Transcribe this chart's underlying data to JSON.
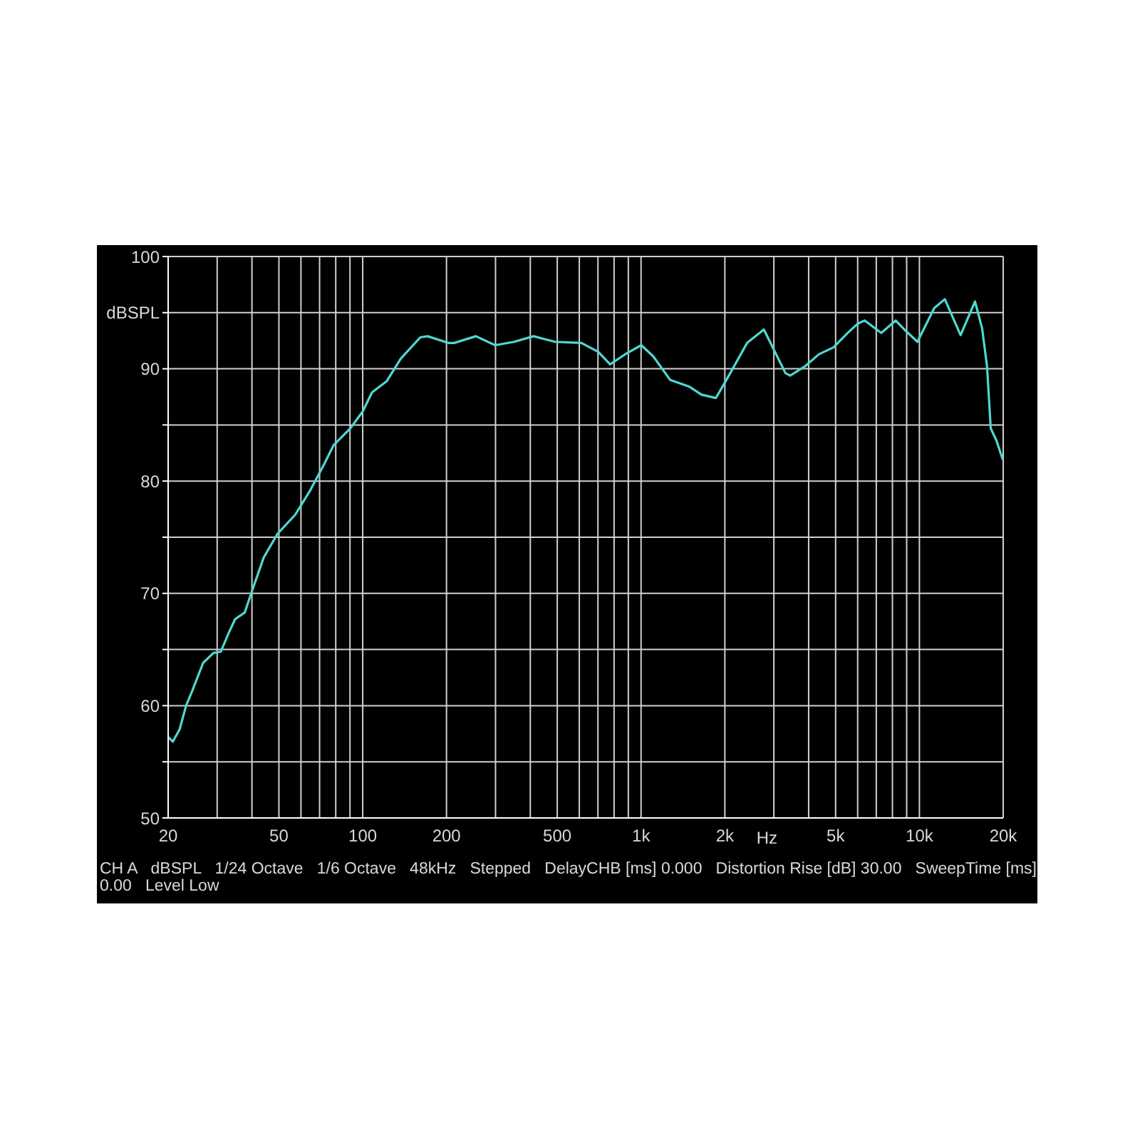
{
  "chart_data": {
    "type": "line",
    "xlabel": "Hz",
    "ylabel": "dBSPL",
    "log": "x",
    "grid": true,
    "marker": "none",
    "line_style": "solid",
    "xlim": [
      20,
      20000
    ],
    "xticks": [
      20,
      {
        "value": 30,
        "label": null
      },
      {
        "value": 40,
        "label": null
      },
      50,
      {
        "value": 60,
        "label": null
      },
      {
        "value": 70,
        "label": null
      },
      {
        "value": 80,
        "label": null
      },
      {
        "value": 90,
        "label": null
      },
      100,
      200,
      {
        "value": 300,
        "label": null
      },
      {
        "value": 400,
        "label": null
      },
      500,
      {
        "value": 600,
        "label": null
      },
      {
        "value": 700,
        "label": null
      },
      {
        "value": 800,
        "label": null
      },
      {
        "value": 900,
        "label": null
      },
      {
        "value": 1000,
        "label": "1k"
      },
      {
        "value": 2000,
        "label": "2k"
      },
      {
        "value": 3000,
        "label": null
      },
      {
        "value": 4000,
        "label": null
      },
      {
        "value": 5000,
        "label": "5k"
      },
      {
        "value": 6000,
        "label": null
      },
      {
        "value": 7000,
        "label": null
      },
      {
        "value": 8000,
        "label": null
      },
      {
        "value": 9000,
        "label": null
      },
      {
        "value": 10000,
        "label": "10k"
      },
      {
        "value": 20000,
        "label": "20k"
      }
    ],
    "ylim": [
      50,
      100
    ],
    "yticks": [
      50,
      {
        "value": 55,
        "label": null
      },
      60,
      {
        "value": 65,
        "label": null
      },
      70,
      {
        "value": 75,
        "label": null
      },
      80,
      {
        "value": 85,
        "label": null
      },
      90,
      {
        "value": 95,
        "label": null
      },
      100
    ],
    "series": [
      {
        "color": "#4fd8d0",
        "x": [
          20,
          20.8,
          22,
          23.2,
          24.4,
          26.7,
          29.1,
          30.9,
          32.9,
          34.8,
          37.7,
          40,
          44.1,
          49.4,
          57.2,
          64.5,
          72.7,
          78.6,
          90.3,
          100,
          108,
          122,
          137,
          161,
          171,
          203,
          213,
          255,
          299,
          350,
          411,
          491,
          611,
          702,
          774,
          891,
          1002,
          1107,
          1273,
          1493,
          1648,
          1858,
          2090,
          2404,
          2762,
          3304,
          3435,
          3872,
          4358,
          4910,
          5530,
          5990,
          6354,
          7296,
          8222,
          8912,
          9840,
          11300,
          12340,
          14060,
          15840,
          16800,
          17500,
          18040,
          18920,
          19940
        ],
        "values": [
          57.2,
          56.8,
          57.9,
          60,
          61.3,
          63.8,
          64.7,
          64.8,
          66.4,
          67.7,
          68.3,
          70.2,
          73.2,
          75.3,
          77,
          79.1,
          81.5,
          83.2,
          84.7,
          86.2,
          87.9,
          88.9,
          90.9,
          92.8,
          92.9,
          92.3,
          92.3,
          92.9,
          92.1,
          92.4,
          92.9,
          92.4,
          92.3,
          91.5,
          90.4,
          91.4,
          92.1,
          91.1,
          89,
          88.4,
          87.7,
          87.4,
          89.6,
          92.3,
          93.5,
          89.6,
          89.4,
          90.2,
          91.3,
          91.9,
          93.2,
          94,
          94.3,
          93.2,
          94.3,
          93.4,
          92.4,
          95.4,
          96.2,
          93,
          96,
          93.6,
          90.2,
          84.7,
          83.6,
          81.9
        ]
      }
    ],
    "annotations": [
      "CH A   dBSPL   1/24 Octave   1/6 Octave   48kHz   Stepped   DelayCHB [ms] 0.000   Distortion Rise [dB] 30.00   SweepTime [ms] 0.00   Level Low"
    ]
  }
}
